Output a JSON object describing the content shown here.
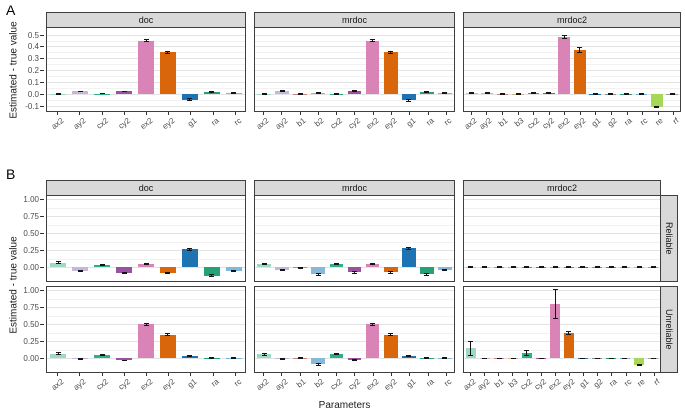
{
  "figure": {
    "a_label": "A",
    "b_label": "B"
  },
  "colors": {
    "ax2": "#9ed9c3",
    "ay2": "#c4b7dd",
    "b1": "#c9857e",
    "b2": "#89b9d8",
    "b3": "#ccb88e",
    "cx2": "#2bb089",
    "cy2": "#9b51a2",
    "ex2": "#d983b6",
    "ey2": "#da660c",
    "g1": "#1e73b2",
    "g2": "#8f8f8f",
    "ra": "#23a274",
    "rc": "#7fbade",
    "re": "#a7d757",
    "rf": "#9f9f9f",
    "error_bar": "#141414",
    "strip_bg": "#d9d9d9",
    "panel_border": "#3f3f3f",
    "grid_major": "#e3e3e3",
    "grid_minor": "#f2f2f2"
  },
  "chart_data": [
    {
      "panel": "A",
      "type": "bar",
      "ylabel": "Estimated - true value",
      "xlabel": "",
      "ylim": [
        -0.145,
        0.555
      ],
      "grid": true,
      "yticks": [
        {
          "v": 0.5,
          "label": "0.5"
        },
        {
          "v": 0.4,
          "label": "0.4"
        },
        {
          "v": 0.3,
          "label": "0.3"
        },
        {
          "v": 0.2,
          "label": "0.2"
        },
        {
          "v": 0.1,
          "label": "0.1"
        },
        {
          "v": 0.0,
          "label": "0.0"
        },
        {
          "v": -0.1,
          "label": "-0.1"
        }
      ],
      "facets": [
        {
          "label": "doc",
          "categories": [
            "ax2",
            "ay2",
            "cx2",
            "cy2",
            "ex2",
            "ey2",
            "g1",
            "ra",
            "rc"
          ],
          "values": [
            0.002,
            0.02,
            0.003,
            0.02,
            0.45,
            0.35,
            -0.05,
            0.015,
            0.005
          ],
          "errors": [
            0.004,
            0.004,
            0.004,
            0.004,
            0.008,
            0.006,
            0.008,
            0.004,
            0.004
          ]
        },
        {
          "label": "mrdoc",
          "categories": [
            "ax2",
            "ay2",
            "b1",
            "b2",
            "cx2",
            "cy2",
            "ex2",
            "ey2",
            "g1",
            "ra",
            "rc"
          ],
          "values": [
            0.002,
            0.022,
            0.002,
            0.008,
            0.002,
            0.022,
            0.45,
            0.35,
            -0.055,
            0.018,
            0.004
          ],
          "errors": [
            0.004,
            0.004,
            0.004,
            0.004,
            0.004,
            0.004,
            0.008,
            0.006,
            0.01,
            0.004,
            0.004
          ]
        },
        {
          "label": "mrdoc2",
          "categories": [
            "ax2",
            "ay2",
            "b1",
            "b3",
            "cx2",
            "cy2",
            "ex2",
            "ey2",
            "g1",
            "g2",
            "ra",
            "rc",
            "re",
            "rf"
          ],
          "values": [
            0.005,
            0.005,
            0.002,
            0.002,
            0.005,
            0.005,
            0.48,
            0.37,
            0.002,
            0.002,
            0.002,
            0.002,
            -0.11,
            0.002
          ],
          "errors": [
            0.004,
            0.004,
            0.004,
            0.004,
            0.004,
            0.004,
            0.012,
            0.018,
            0.004,
            0.004,
            0.004,
            0.004,
            0.006,
            0.004
          ]
        }
      ]
    },
    {
      "panel": "B",
      "type": "bar",
      "ylabel": "Estimated - true value",
      "xlabel": "Parameters",
      "ylim": [
        -0.2,
        1.05
      ],
      "grid": true,
      "yticks": [
        {
          "v": 1.0,
          "label": "1.00"
        },
        {
          "v": 0.75,
          "label": "0.75"
        },
        {
          "v": 0.5,
          "label": "0.50"
        },
        {
          "v": 0.25,
          "label": "0.25"
        },
        {
          "v": 0.0,
          "label": "0.00"
        }
      ],
      "row_facets": [
        "Reliable",
        "Unreliable"
      ],
      "col_facets": [
        "doc",
        "mrdoc",
        "mrdoc2"
      ],
      "cells": [
        {
          "row": "Reliable",
          "col": "doc",
          "categories": [
            "ax2",
            "ay2",
            "cx2",
            "cy2",
            "ex2",
            "ey2",
            "g1",
            "ra",
            "rc"
          ],
          "values": [
            0.07,
            -0.05,
            0.04,
            -0.08,
            0.05,
            -0.08,
            0.27,
            -0.12,
            -0.05
          ],
          "errors": [
            0.012,
            0.01,
            0.01,
            0.012,
            0.012,
            0.012,
            0.015,
            0.012,
            0.01
          ]
        },
        {
          "row": "Reliable",
          "col": "mrdoc",
          "categories": [
            "ax2",
            "ay2",
            "b1",
            "b2",
            "cx2",
            "cy2",
            "ex2",
            "ey2",
            "g1",
            "ra",
            "rc"
          ],
          "values": [
            0.05,
            -0.04,
            -0.01,
            -0.1,
            0.05,
            -0.07,
            0.05,
            -0.07,
            0.28,
            -0.1,
            -0.04
          ],
          "errors": [
            0.012,
            0.01,
            0.006,
            0.012,
            0.01,
            0.012,
            0.012,
            0.012,
            0.015,
            0.012,
            0.01
          ]
        },
        {
          "row": "Reliable",
          "col": "mrdoc2",
          "categories": [
            "ax2",
            "ay2",
            "b1",
            "b3",
            "cx2",
            "cy2",
            "ex2",
            "ey2",
            "g1",
            "g2",
            "ra",
            "rc",
            "re",
            "rf"
          ],
          "values": [
            0.001,
            0.001,
            0.001,
            0.001,
            0.001,
            0.001,
            0.001,
            0.001,
            0.001,
            0.001,
            0.001,
            0.001,
            0.001,
            0.001
          ],
          "errors": [
            0.006,
            0.006,
            0.006,
            0.006,
            0.006,
            0.006,
            0.006,
            0.006,
            0.006,
            0.006,
            0.006,
            0.006,
            0.006,
            0.006
          ]
        },
        {
          "row": "Unreliable",
          "col": "doc",
          "categories": [
            "ax2",
            "ay2",
            "cx2",
            "cy2",
            "ex2",
            "ey2",
            "g1",
            "ra",
            "rc"
          ],
          "values": [
            0.07,
            -0.012,
            0.05,
            -0.03,
            0.5,
            0.35,
            0.04,
            0.012,
            0.004
          ],
          "errors": [
            0.012,
            0.006,
            0.008,
            0.006,
            0.015,
            0.012,
            0.01,
            0.006,
            0.004
          ]
        },
        {
          "row": "Unreliable",
          "col": "mrdoc",
          "categories": [
            "ax2",
            "ay2",
            "b1",
            "b2",
            "cx2",
            "cy2",
            "ex2",
            "ey2",
            "g1",
            "ra",
            "rc"
          ],
          "values": [
            0.06,
            -0.012,
            0.01,
            -0.09,
            0.06,
            -0.02,
            0.5,
            0.35,
            0.04,
            0.012,
            0.004
          ],
          "errors": [
            0.012,
            0.006,
            0.006,
            0.012,
            0.008,
            0.006,
            0.015,
            0.012,
            0.01,
            0.006,
            0.004
          ]
        },
        {
          "row": "Unreliable",
          "col": "mrdoc2",
          "categories": [
            "ax2",
            "ay2",
            "b1",
            "b3",
            "cx2",
            "cy2",
            "ex2",
            "ey2",
            "g1",
            "g2",
            "ra",
            "rc",
            "re",
            "rf"
          ],
          "values": [
            0.15,
            0.001,
            0.001,
            0.001,
            0.08,
            0.001,
            0.8,
            0.37,
            0.001,
            0.001,
            0.001,
            0.001,
            -0.1,
            0.001
          ],
          "errors": [
            0.1,
            0.005,
            0.005,
            0.005,
            0.04,
            0.005,
            0.21,
            0.02,
            0.005,
            0.005,
            0.005,
            0.005,
            0.01,
            0.005
          ]
        }
      ]
    }
  ]
}
